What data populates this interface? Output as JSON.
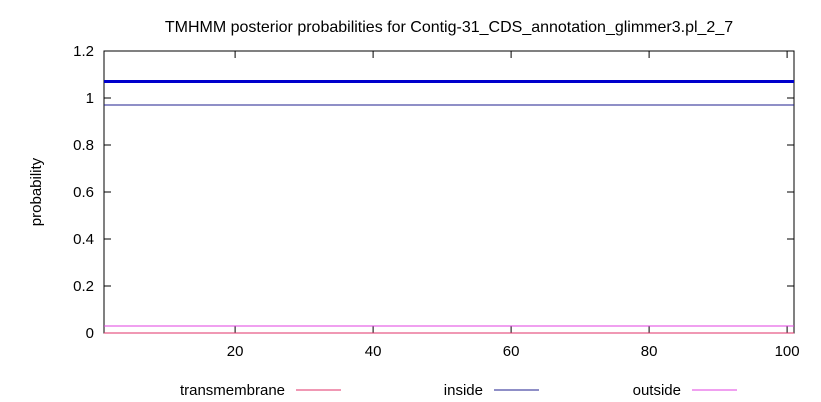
{
  "chart_data": {
    "type": "line",
    "title": "TMHMM posterior probabilities for Contig-31_CDS_annotation_glimmer3.pl_2_7",
    "xlabel": "",
    "ylabel": "probability",
    "xlim": [
      1,
      101
    ],
    "ylim": [
      0,
      1.2
    ],
    "x_ticks": [
      20,
      40,
      60,
      80,
      100
    ],
    "y_ticks": [
      0,
      0.2,
      0.4,
      0.6,
      0.8,
      1,
      1.2
    ],
    "y_tick_labels": [
      "0",
      "0.2",
      "0.4",
      "0.6",
      "0.8",
      "1",
      "1.2"
    ],
    "x_tick_labels": [
      "20",
      "40",
      "60",
      "80",
      "100"
    ],
    "grid": false,
    "legend_position": "bottom",
    "series": [
      {
        "name": "transmembrane",
        "color": "#e0306a",
        "x": [
          1,
          101
        ],
        "y": [
          0,
          0
        ]
      },
      {
        "name": "inside",
        "color": "#1f1f8f",
        "x": [
          1,
          101
        ],
        "y": [
          0.97,
          0.97
        ]
      },
      {
        "name": "outside",
        "color": "#e040e0",
        "x": [
          1,
          101
        ],
        "y": [
          0.03,
          0.03
        ]
      }
    ],
    "extra_lines": [
      {
        "color": "#0000cc",
        "x": [
          1,
          101
        ],
        "y": [
          1.07,
          1.07
        ],
        "width": 3
      }
    ]
  }
}
